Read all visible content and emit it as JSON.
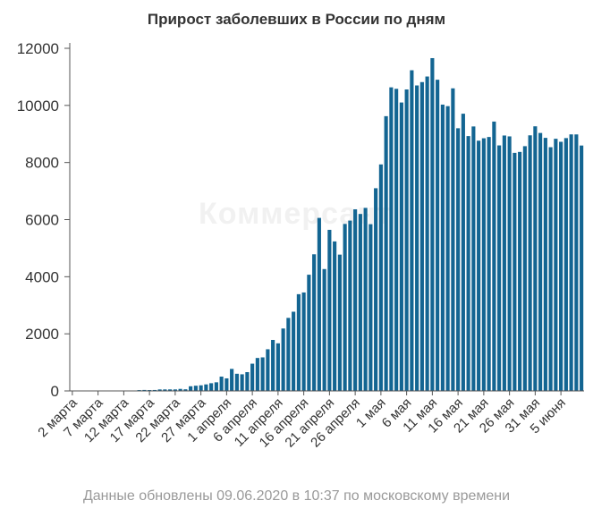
{
  "title": "Прирост заболевших в России по дням",
  "footer": "Данные обновлены 09.06.2020 в 10:37 по московскому времени",
  "watermark": "Коммерсант",
  "colors": {
    "bar": "#136592",
    "axis": "#555555",
    "title": "#333333",
    "footer": "#999999"
  },
  "chart_data": {
    "type": "bar",
    "title": "Прирост заболевших в России по дням",
    "xlabel": "",
    "ylabel": "",
    "ylim": [
      0,
      12000
    ],
    "yticks": [
      0,
      2000,
      4000,
      6000,
      8000,
      10000,
      12000
    ],
    "grid": false,
    "x_tick_labels": [
      "2 марта",
      "7 марта",
      "12 марта",
      "17 марта",
      "22 марта",
      "27 марта",
      "1 апреля",
      "6 апреля",
      "11 апреля",
      "16 апреля",
      "21 апреля",
      "26 апреля",
      "1 мая",
      "6 мая",
      "11 мая",
      "16 мая",
      "21 мая",
      "26 мая",
      "31 мая",
      "5 июня"
    ],
    "categories": [
      "2 марта",
      "3 марта",
      "4 марта",
      "5 марта",
      "6 марта",
      "7 марта",
      "8 марта",
      "9 марта",
      "10 марта",
      "11 марта",
      "12 марта",
      "13 марта",
      "14 марта",
      "15 марта",
      "16 марта",
      "17 марта",
      "18 марта",
      "19 марта",
      "20 марта",
      "21 марта",
      "22 марта",
      "23 марта",
      "24 марта",
      "25 марта",
      "26 марта",
      "27 марта",
      "28 марта",
      "29 марта",
      "30 марта",
      "31 марта",
      "1 апреля",
      "2 апреля",
      "3 апреля",
      "4 апреля",
      "5 апреля",
      "6 апреля",
      "7 апреля",
      "8 апреля",
      "9 апреля",
      "10 апреля",
      "11 апреля",
      "12 апреля",
      "13 апреля",
      "14 апреля",
      "15 апреля",
      "16 апреля",
      "17 апреля",
      "18 апреля",
      "19 апреля",
      "20 апреля",
      "21 апреля",
      "22 апреля",
      "23 апреля",
      "24 апреля",
      "25 апреля",
      "26 апреля",
      "27 апреля",
      "28 апреля",
      "29 апреля",
      "30 апреля",
      "1 мая",
      "2 мая",
      "3 мая",
      "4 мая",
      "5 мая",
      "6 мая",
      "7 мая",
      "8 мая",
      "9 мая",
      "10 мая",
      "11 мая",
      "12 мая",
      "13 мая",
      "14 мая",
      "15 мая",
      "16 мая",
      "17 мая",
      "18 мая",
      "19 мая",
      "20 мая",
      "21 мая",
      "22 мая",
      "23 мая",
      "24 мая",
      "25 мая",
      "26 мая",
      "27 мая",
      "28 мая",
      "29 мая",
      "30 мая",
      "31 мая",
      "1 июня",
      "2 июня",
      "3 июня",
      "4 июня",
      "5 июня",
      "6 июня",
      "7 июня",
      "8 июня",
      "9 июня"
    ],
    "values": [
      1,
      1,
      0,
      0,
      0,
      1,
      2,
      4,
      3,
      8,
      6,
      6,
      14,
      29,
      34,
      30,
      33,
      52,
      53,
      54,
      53,
      71,
      57,
      163,
      182,
      196,
      228,
      270,
      302,
      501,
      440,
      771,
      601,
      582,
      658,
      954,
      1154,
      1175,
      1459,
      1786,
      1667,
      2186,
      2558,
      2774,
      3388,
      3448,
      4070,
      4785,
      6060,
      4268,
      5642,
      5236,
      4774,
      5849,
      5966,
      6361,
      6198,
      6411,
      5841,
      7099,
      7933,
      9623,
      10633,
      10581,
      10102,
      10559,
      11231,
      10699,
      10817,
      11012,
      11656,
      10899,
      10028,
      9974,
      10598,
      9200,
      9709,
      8926,
      9263,
      8764,
      8849,
      8894,
      9434,
      8599,
      8946,
      8915,
      8338,
      8371,
      8572,
      8952,
      9268,
      9035,
      8863,
      8536,
      8831,
      8726,
      8855,
      8985,
      8984,
      8595
    ]
  }
}
